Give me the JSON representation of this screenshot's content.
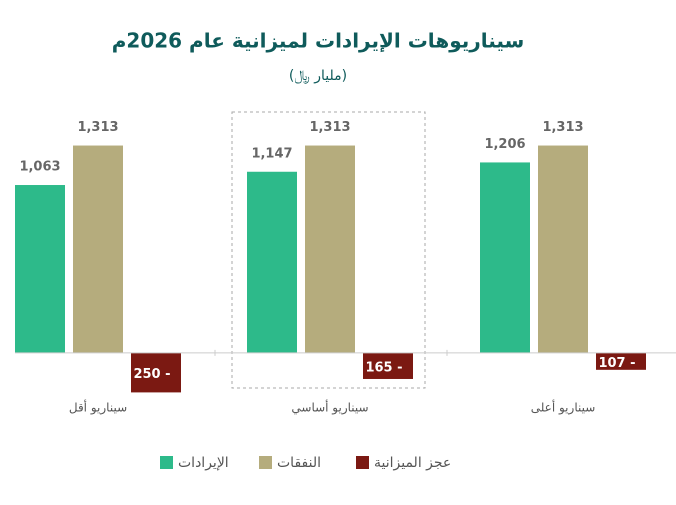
{
  "chart_data": {
    "type": "bar",
    "title": "سيناريوهات الإيرادات لميزانية عام 2026م",
    "subtitle": "(مليار ﷼)",
    "categories": [
      "سيناريو أقل",
      "سيناريو أساسي",
      "سيناريو أعلى"
    ],
    "series": [
      {
        "name": "الإيرادات",
        "color": "#2dba8a",
        "values": [
          1063,
          1147,
          1206
        ],
        "value_labels": [
          "1,063",
          "1,147",
          "1,206"
        ]
      },
      {
        "name": "النفقات",
        "color": "#b5ac7d",
        "values": [
          1313,
          1313,
          1313
        ],
        "value_labels": [
          "1,313",
          "1,313",
          "1,313"
        ]
      },
      {
        "name": "عجز الميزانية",
        "color": "#7b1912",
        "values": [
          -250,
          -165,
          -107
        ],
        "value_labels": [
          "250 -",
          "165 -",
          "107 -"
        ]
      }
    ],
    "ylim": [
      -300,
      1500
    ]
  }
}
